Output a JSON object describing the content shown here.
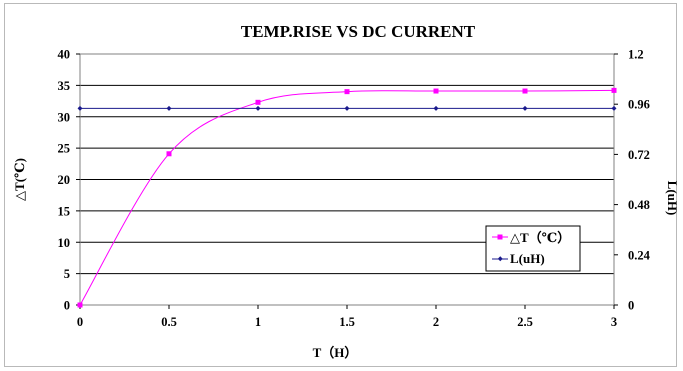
{
  "chart_data": {
    "type": "line",
    "title": "TEMP.RISE VS DC CURRENT",
    "xlabel": "T（H）",
    "ylabel": "△T(℃)",
    "y2label": "L(uH)",
    "x_ticks": [
      "0",
      "0.5",
      "1",
      "1.5",
      "2",
      "2.5",
      "3"
    ],
    "y_ticks": [
      "0",
      "5",
      "10",
      "15",
      "20",
      "25",
      "30",
      "35",
      "40"
    ],
    "y2_ticks": [
      "0",
      "0.24",
      "0.48",
      "0.72",
      "0.96",
      "1.2"
    ],
    "xlim": [
      0,
      3
    ],
    "ylim": [
      0,
      40
    ],
    "y2lim": [
      0,
      1.2
    ],
    "grid": "horizontal",
    "legend_position": "bottom-right",
    "series": [
      {
        "name": "△T（℃）",
        "axis": "left",
        "color": "#ff00ff",
        "marker": "square",
        "smooth": true,
        "x": [
          0,
          0.5,
          1,
          1.5,
          2,
          2.5,
          3
        ],
        "values": [
          0,
          24.1,
          32.3,
          34.0,
          34.1,
          34.1,
          34.2
        ]
      },
      {
        "name": "L(uH)",
        "axis": "right",
        "color": "#1a1a8c",
        "marker": "diamond",
        "smooth": false,
        "x": [
          0,
          0.5,
          1,
          1.5,
          2,
          2.5,
          3
        ],
        "values": [
          0.94,
          0.94,
          0.94,
          0.94,
          0.94,
          0.94,
          0.94
        ]
      }
    ]
  }
}
